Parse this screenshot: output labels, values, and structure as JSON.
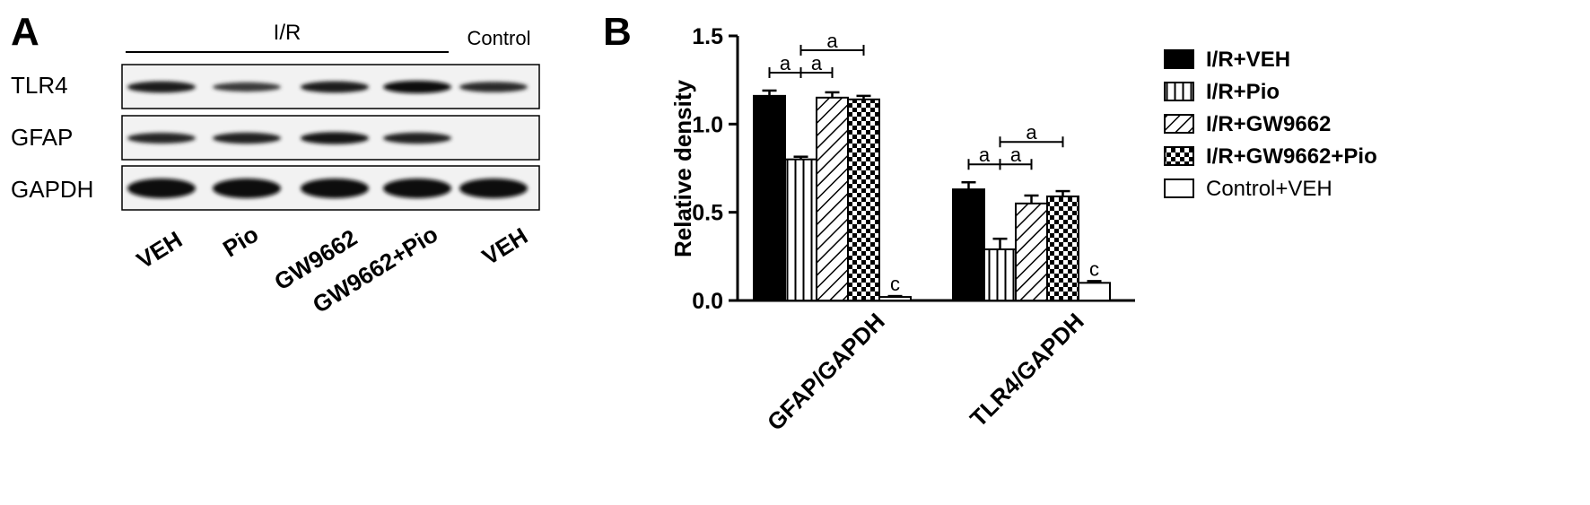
{
  "panel_a": {
    "label": "A",
    "group_label": "I/R",
    "control_label": "Control",
    "rows": [
      {
        "name": "TLR4",
        "intensities": [
          0.85,
          0.55,
          0.85,
          1.0,
          0.7
        ]
      },
      {
        "name": "GFAP",
        "intensities": [
          0.75,
          0.8,
          0.95,
          0.8,
          0.0
        ]
      },
      {
        "name": "GAPDH",
        "intensities": [
          1.0,
          1.0,
          1.0,
          1.0,
          1.0
        ]
      }
    ],
    "lanes": [
      "VEH",
      "Pio",
      "GW9662",
      "GW9662+Pio",
      "VEH"
    ]
  },
  "panel_b": {
    "label": "B"
  },
  "chart_data": {
    "type": "bar",
    "categories": [
      "GFAP/GAPDH",
      "TLR4/GAPDH"
    ],
    "ylabel": "Relative density",
    "xlabel": "",
    "ylim": [
      0,
      1.5
    ],
    "yticks": [
      "0.0",
      "0.5",
      "1.0",
      "1.5"
    ],
    "legend_position": "right",
    "series": [
      {
        "name": "I/R+VEH",
        "values": [
          1.16,
          0.63
        ],
        "errors": [
          0.03,
          0.04
        ],
        "pattern": "solid"
      },
      {
        "name": "I/R+Pio",
        "values": [
          0.8,
          0.29
        ],
        "errors": [
          0.015,
          0.06
        ],
        "pattern": "vertical"
      },
      {
        "name": "I/R+GW9662",
        "values": [
          1.15,
          0.55
        ],
        "errors": [
          0.03,
          0.045
        ],
        "pattern": "diagonal"
      },
      {
        "name": "I/R+GW9662+Pio",
        "values": [
          1.14,
          0.59
        ],
        "errors": [
          0.02,
          0.03
        ],
        "pattern": "checker"
      },
      {
        "name": "Control+VEH",
        "values": [
          0.02,
          0.1
        ],
        "errors": [
          0.005,
          0.01
        ],
        "pattern": "empty"
      }
    ],
    "annotations": {
      "significance_letter": "a",
      "control_letter": "c"
    }
  }
}
